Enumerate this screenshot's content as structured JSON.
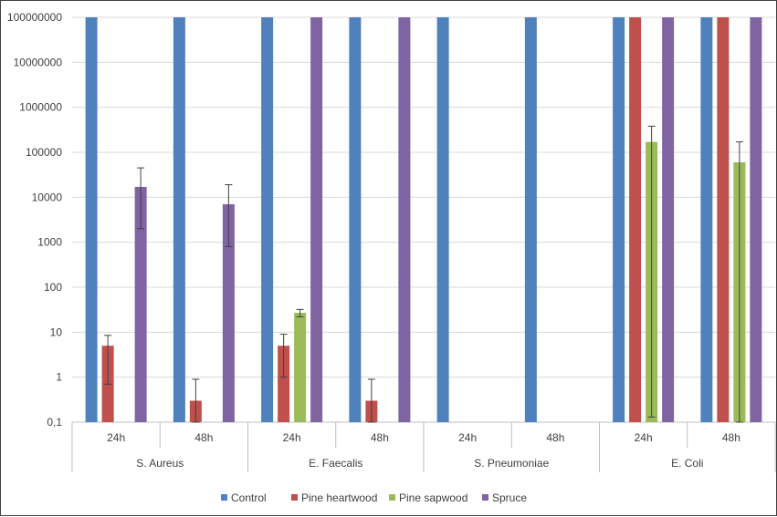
{
  "chart_data": {
    "type": "bar",
    "yscale": "log",
    "ylim": [
      0.1,
      100000000
    ],
    "y_ticks": [
      "0,1",
      "1",
      "10",
      "100",
      "1000",
      "10000",
      "100000",
      "1000000",
      "10000000",
      "100000000"
    ],
    "groups": [
      "S. Aureus",
      "E. Faecalis",
      "S. Pneumoniae",
      "E. Coli"
    ],
    "subcategories": [
      "24h",
      "48h"
    ],
    "legend_position": "bottom",
    "series": [
      {
        "name": "Control",
        "color": "#4F81BD",
        "values": [
          100000000,
          100000000,
          100000000,
          100000000,
          100000000,
          100000000,
          100000000,
          100000000
        ],
        "errors": [
          null,
          null,
          null,
          null,
          null,
          null,
          null,
          null
        ]
      },
      {
        "name": "Pine heartwood",
        "color": "#C0504D",
        "values": [
          5,
          0.3,
          5,
          0.3,
          null,
          null,
          100000000,
          100000000
        ],
        "errors": [
          [
            0.7,
            8.5
          ],
          [
            0.1,
            0.9
          ],
          [
            1,
            9
          ],
          [
            0.1,
            0.9
          ],
          null,
          null,
          null,
          null
        ]
      },
      {
        "name": "Pine sapwood",
        "color": "#9BBB59",
        "values": [
          null,
          null,
          27,
          null,
          null,
          null,
          170000,
          60000
        ],
        "errors": [
          null,
          null,
          [
            22,
            32
          ],
          null,
          null,
          null,
          [
            0.13,
            380000
          ],
          [
            0.1,
            170000
          ]
        ]
      },
      {
        "name": "Spruce",
        "color": "#8064A2",
        "values": [
          17000,
          7000,
          100000000,
          100000000,
          null,
          null,
          100000000,
          100000000
        ],
        "errors": [
          [
            2000,
            45000
          ],
          [
            800,
            19000
          ],
          null,
          null,
          null,
          null,
          null,
          null
        ]
      }
    ]
  }
}
